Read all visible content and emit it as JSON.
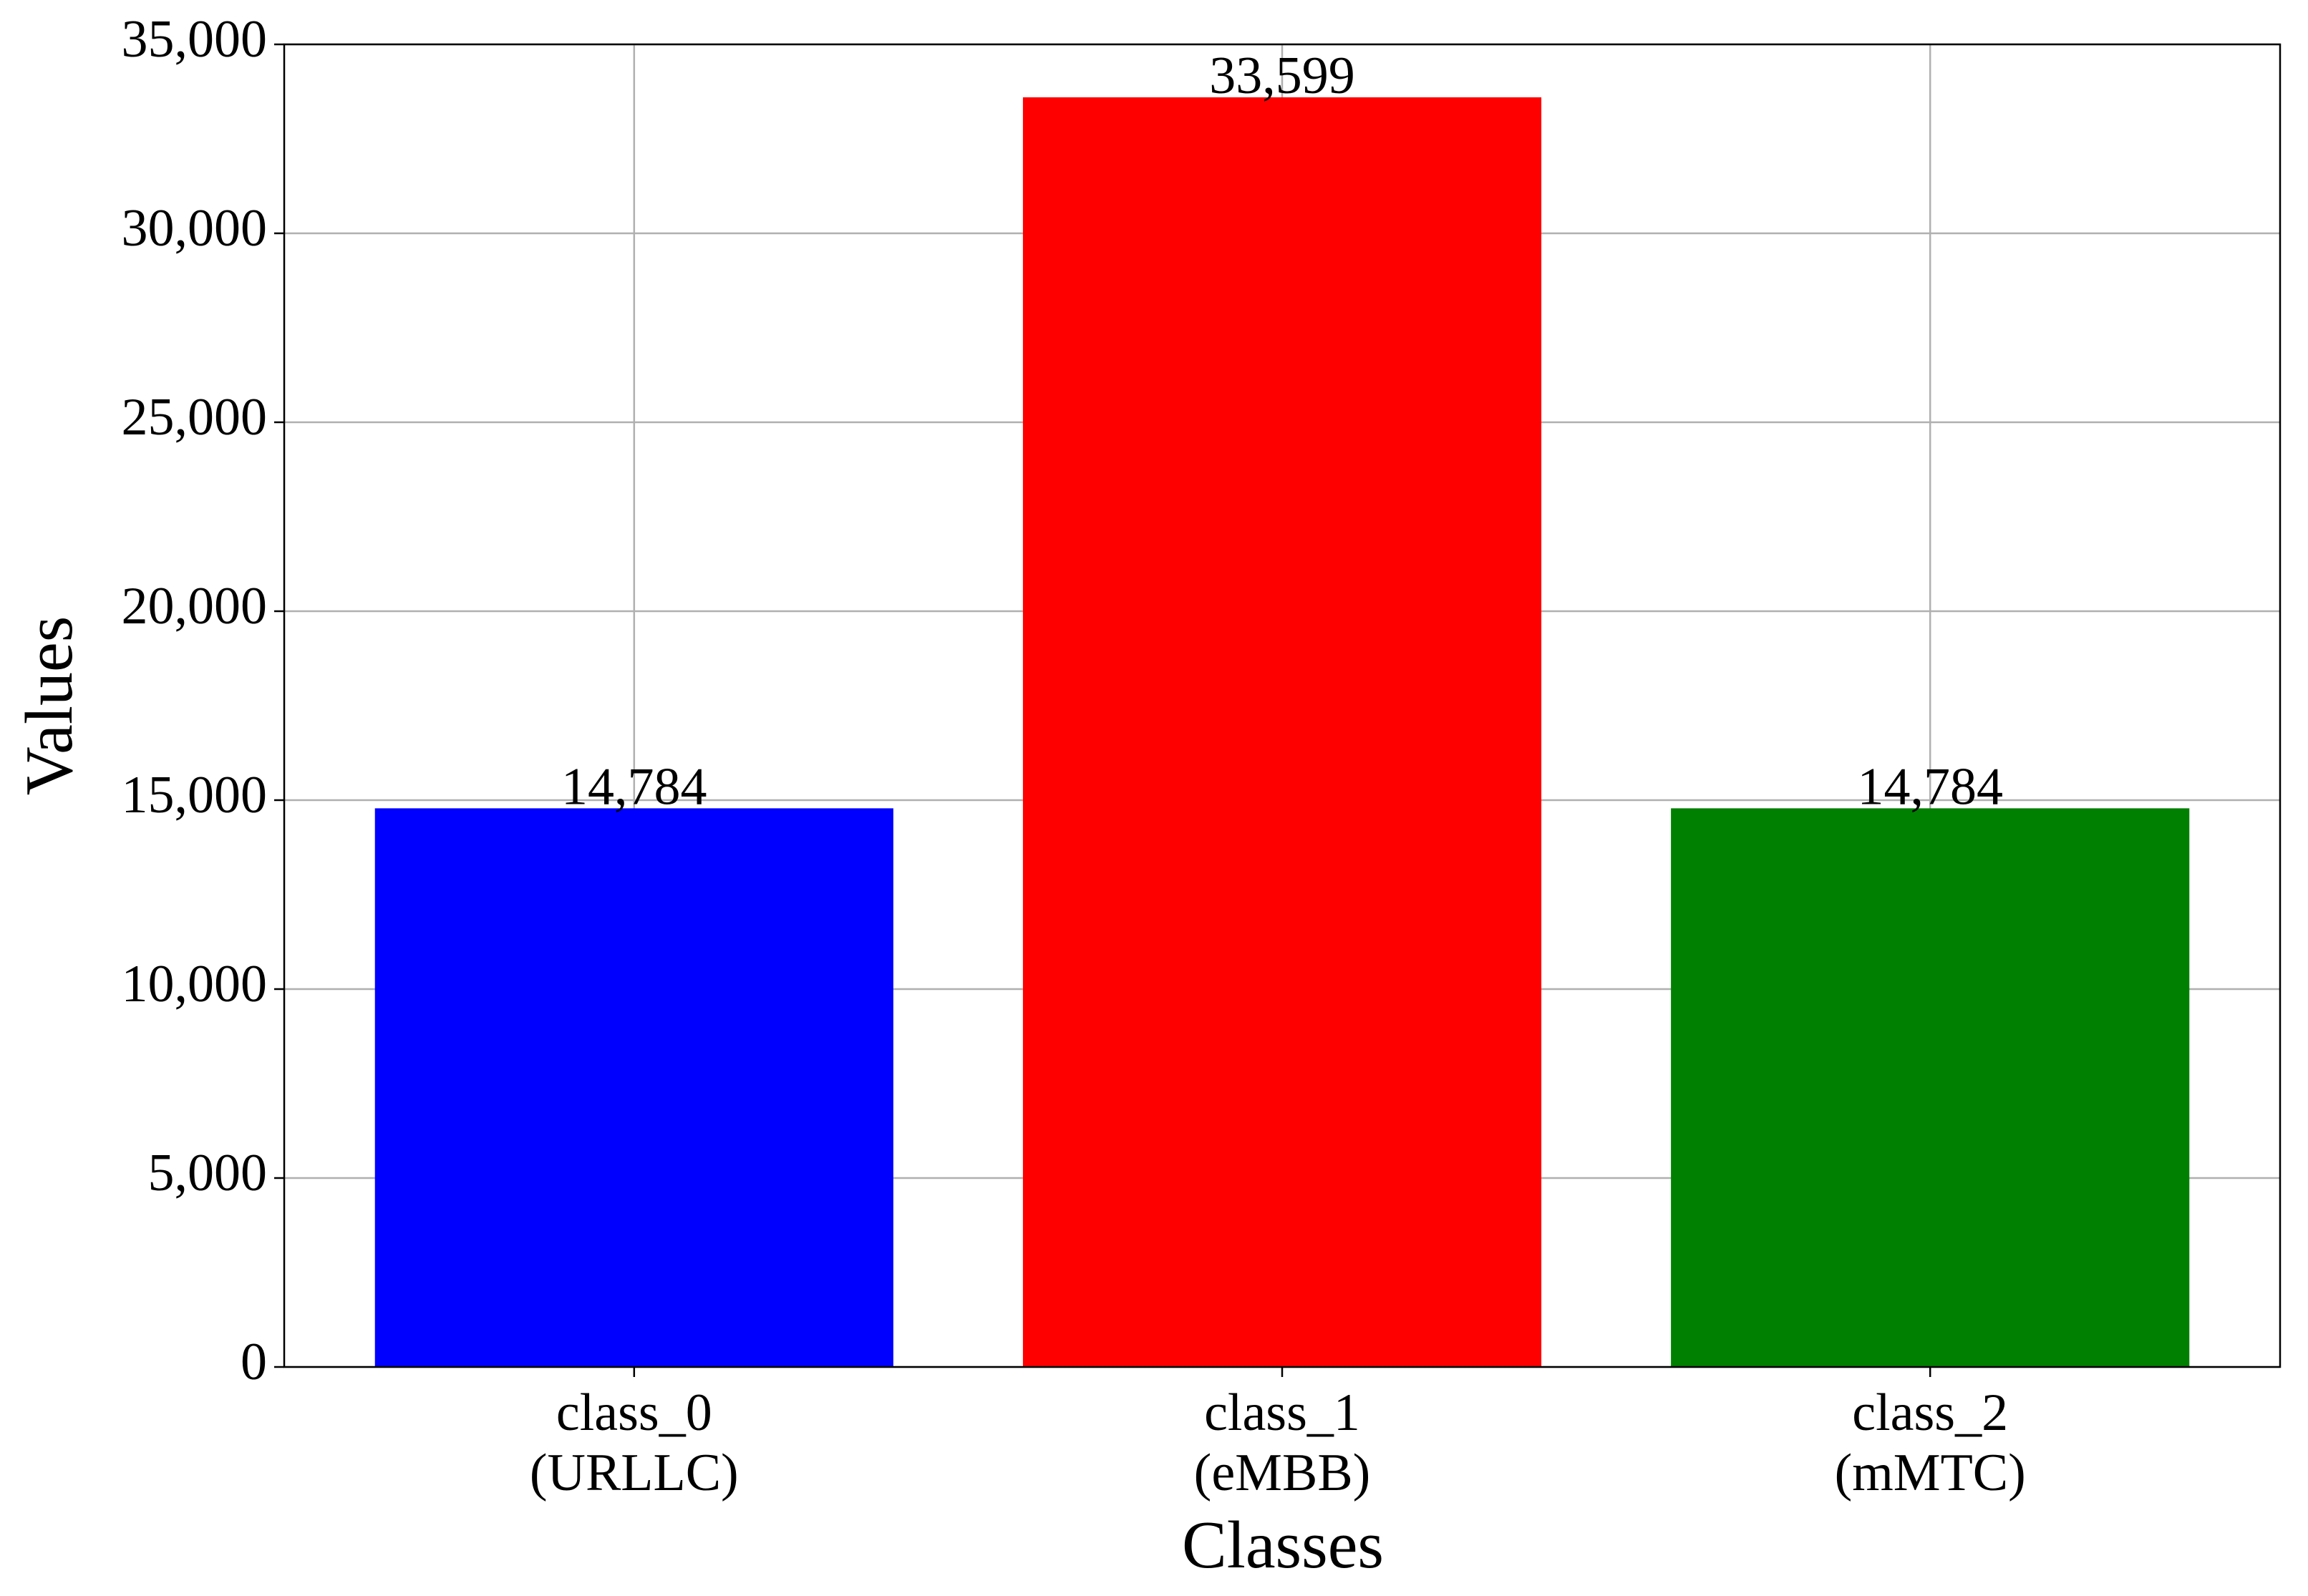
{
  "chart_data": {
    "type": "bar",
    "categories": [
      "class_0\n(URLLC)",
      "class_1\n(eMBB)",
      "class_2\n(mMTC)"
    ],
    "values": [
      14784,
      33599,
      14784
    ],
    "value_labels": [
      "14,784",
      "33,599",
      "14,784"
    ],
    "colors": [
      "#0000ff",
      "#ff0000",
      "#008000"
    ],
    "x_label": "Classes",
    "y_label": "Values",
    "ylim": [
      0,
      35000
    ],
    "yticks": [
      0,
      {
        "value": 5000,
        "label": "5,000"
      },
      {
        "value": 10000,
        "label": "10,000"
      },
      {
        "value": 15000,
        "label": "15,000"
      },
      {
        "value": 20000,
        "label": "20,000"
      },
      {
        "value": 25000,
        "label": "25,000"
      },
      {
        "value": 30000,
        "label": "30,000"
      },
      {
        "value": 35000,
        "label": "35,000"
      }
    ],
    "grid": true
  }
}
